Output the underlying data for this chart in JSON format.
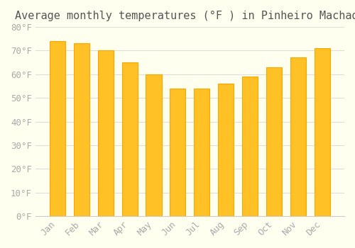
{
  "title": "Average monthly temperatures (°F ) in Pinheiro Machado",
  "months": [
    "Jan",
    "Feb",
    "Mar",
    "Apr",
    "May",
    "Jun",
    "Jul",
    "Aug",
    "Sep",
    "Oct",
    "Nov",
    "Dec"
  ],
  "values": [
    74,
    73,
    70,
    65,
    60,
    54,
    54,
    56,
    59,
    63,
    67,
    71
  ],
  "bar_color_main": "#FFC125",
  "bar_color_edge": "#FFA500",
  "ylim": [
    0,
    80
  ],
  "yticks": [
    0,
    10,
    20,
    30,
    40,
    50,
    60,
    70,
    80
  ],
  "ytick_labels": [
    "0°F",
    "10°F",
    "20°F",
    "30°F",
    "40°F",
    "50°F",
    "60°F",
    "70°F",
    "80°F"
  ],
  "background_color": "#FFFFF0",
  "grid_color": "#DDDDDD",
  "title_fontsize": 11,
  "tick_fontsize": 9,
  "title_font": "monospace"
}
